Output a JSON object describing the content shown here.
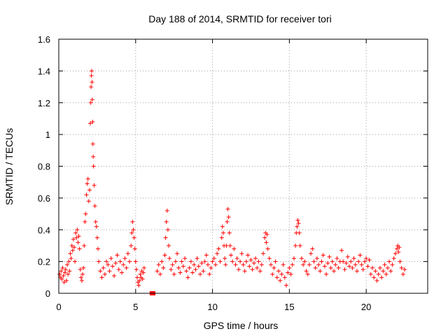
{
  "chart_data": {
    "type": "scatter",
    "title": "Day 188 of 2014, SRMTID for receiver tori",
    "xlabel": "GPS time / hours",
    "ylabel": "SRMTID / TECUs",
    "xlim": [
      0,
      24
    ],
    "ylim": [
      0,
      1.6
    ],
    "x_ticks": [
      0,
      5,
      10,
      15,
      20
    ],
    "x_tick_labels": [
      "0",
      "5",
      "10",
      "15",
      "20"
    ],
    "y_ticks": [
      0,
      0.2,
      0.4,
      0.6,
      0.8,
      1.0,
      1.2,
      1.4,
      1.6
    ],
    "y_tick_labels": [
      "0",
      "0.2",
      "0.4",
      "0.6",
      "0.8",
      "1",
      "1.2",
      "1.4",
      "1.6"
    ],
    "grid": true,
    "marker": "plus",
    "color": "#ff0000",
    "data_gap": [
      5.6,
      6.3
    ],
    "outlier_markers": [
      {
        "x": 6.05,
        "y": 0.0
      },
      {
        "x": 6.1,
        "y": 0.0
      },
      {
        "x": 6.15,
        "y": 0.0
      }
    ],
    "series": [
      {
        "name": "SRMTID",
        "points": [
          [
            0.05,
            0.12
          ],
          [
            0.1,
            0.1
          ],
          [
            0.15,
            0.14
          ],
          [
            0.2,
            0.09
          ],
          [
            0.25,
            0.16
          ],
          [
            0.3,
            0.11
          ],
          [
            0.35,
            0.07
          ],
          [
            0.4,
            0.13
          ],
          [
            0.45,
            0.15
          ],
          [
            0.5,
            0.08
          ],
          [
            0.55,
            0.18
          ],
          [
            0.6,
            0.12
          ],
          [
            0.65,
            0.2
          ],
          [
            0.7,
            0.14
          ],
          [
            0.75,
            0.25
          ],
          [
            0.8,
            0.22
          ],
          [
            0.85,
            0.3
          ],
          [
            0.9,
            0.27
          ],
          [
            0.95,
            0.34
          ],
          [
            1.0,
            0.29
          ],
          [
            1.05,
            0.2
          ],
          [
            1.1,
            0.38
          ],
          [
            1.15,
            0.35
          ],
          [
            1.2,
            0.4
          ],
          [
            1.25,
            0.32
          ],
          [
            1.3,
            0.36
          ],
          [
            1.35,
            0.28
          ],
          [
            1.4,
            0.15
          ],
          [
            1.45,
            0.1
          ],
          [
            1.5,
            0.08
          ],
          [
            1.55,
            0.12
          ],
          [
            1.6,
            0.16
          ],
          [
            1.65,
            0.3
          ],
          [
            1.7,
            0.45
          ],
          [
            1.75,
            0.5
          ],
          [
            1.8,
            0.62
          ],
          [
            1.85,
            0.69
          ],
          [
            1.9,
            0.72
          ],
          [
            1.95,
            0.58
          ],
          [
            2.0,
            0.65
          ],
          [
            2.05,
            1.07
          ],
          [
            2.08,
            1.2
          ],
          [
            2.1,
            1.3
          ],
          [
            2.12,
            1.37
          ],
          [
            2.14,
            1.4
          ],
          [
            2.16,
            1.33
          ],
          [
            2.18,
            1.22
          ],
          [
            2.2,
            1.08
          ],
          [
            2.22,
            0.94
          ],
          [
            2.24,
            0.86
          ],
          [
            2.26,
            0.8
          ],
          [
            2.3,
            0.68
          ],
          [
            2.35,
            0.55
          ],
          [
            2.4,
            0.45
          ],
          [
            2.45,
            0.42
          ],
          [
            2.5,
            0.35
          ],
          [
            2.55,
            0.28
          ],
          [
            2.6,
            0.2
          ],
          [
            2.7,
            0.14
          ],
          [
            2.8,
            0.1
          ],
          [
            2.9,
            0.16
          ],
          [
            3.0,
            0.12
          ],
          [
            3.1,
            0.2
          ],
          [
            3.2,
            0.18
          ],
          [
            3.3,
            0.14
          ],
          [
            3.4,
            0.22
          ],
          [
            3.5,
            0.17
          ],
          [
            3.6,
            0.11
          ],
          [
            3.7,
            0.19
          ],
          [
            3.8,
            0.24
          ],
          [
            3.9,
            0.15
          ],
          [
            4.0,
            0.2
          ],
          [
            4.1,
            0.13
          ],
          [
            4.2,
            0.18
          ],
          [
            4.3,
            0.22
          ],
          [
            4.4,
            0.16
          ],
          [
            4.5,
            0.25
          ],
          [
            4.6,
            0.2
          ],
          [
            4.7,
            0.3
          ],
          [
            4.75,
            0.38
          ],
          [
            4.8,
            0.45
          ],
          [
            4.85,
            0.4
          ],
          [
            4.9,
            0.35
          ],
          [
            4.95,
            0.28
          ],
          [
            5.0,
            0.2
          ],
          [
            5.05,
            0.15
          ],
          [
            5.1,
            0.1
          ],
          [
            5.15,
            0.07
          ],
          [
            5.2,
            0.05
          ],
          [
            5.25,
            0.08
          ],
          [
            5.3,
            0.12
          ],
          [
            5.35,
            0.1
          ],
          [
            5.4,
            0.14
          ],
          [
            5.45,
            0.09
          ],
          [
            5.5,
            0.13
          ],
          [
            5.55,
            0.16
          ],
          [
            6.4,
            0.14
          ],
          [
            6.5,
            0.18
          ],
          [
            6.6,
            0.12
          ],
          [
            6.7,
            0.2
          ],
          [
            6.8,
            0.16
          ],
          [
            6.9,
            0.24
          ],
          [
            6.95,
            0.35
          ],
          [
            7.0,
            0.45
          ],
          [
            7.05,
            0.52
          ],
          [
            7.1,
            0.4
          ],
          [
            7.15,
            0.3
          ],
          [
            7.2,
            0.22
          ],
          [
            7.3,
            0.15
          ],
          [
            7.4,
            0.18
          ],
          [
            7.5,
            0.12
          ],
          [
            7.6,
            0.2
          ],
          [
            7.7,
            0.25
          ],
          [
            7.8,
            0.16
          ],
          [
            7.9,
            0.13
          ],
          [
            8.0,
            0.2
          ],
          [
            8.1,
            0.17
          ],
          [
            8.2,
            0.22
          ],
          [
            8.3,
            0.14
          ],
          [
            8.4,
            0.1
          ],
          [
            8.5,
            0.16
          ],
          [
            8.6,
            0.2
          ],
          [
            8.7,
            0.13
          ],
          [
            8.8,
            0.18
          ],
          [
            8.9,
            0.15
          ],
          [
            9.0,
            0.22
          ],
          [
            9.1,
            0.17
          ],
          [
            9.2,
            0.12
          ],
          [
            9.3,
            0.19
          ],
          [
            9.4,
            0.14
          ],
          [
            9.5,
            0.2
          ],
          [
            9.6,
            0.24
          ],
          [
            9.7,
            0.18
          ],
          [
            9.8,
            0.12
          ],
          [
            9.9,
            0.16
          ],
          [
            10.0,
            0.2
          ],
          [
            10.1,
            0.22
          ],
          [
            10.2,
            0.18
          ],
          [
            10.3,
            0.25
          ],
          [
            10.4,
            0.28
          ],
          [
            10.5,
            0.2
          ],
          [
            10.6,
            0.35
          ],
          [
            10.65,
            0.42
          ],
          [
            10.7,
            0.38
          ],
          [
            10.75,
            0.3
          ],
          [
            10.8,
            0.22
          ],
          [
            10.85,
            0.18
          ],
          [
            10.9,
            0.3
          ],
          [
            10.95,
            0.45
          ],
          [
            11.0,
            0.53
          ],
          [
            11.05,
            0.48
          ],
          [
            11.1,
            0.38
          ],
          [
            11.15,
            0.3
          ],
          [
            11.2,
            0.24
          ],
          [
            11.3,
            0.2
          ],
          [
            11.4,
            0.28
          ],
          [
            11.5,
            0.18
          ],
          [
            11.6,
            0.22
          ],
          [
            11.7,
            0.15
          ],
          [
            11.8,
            0.2
          ],
          [
            11.9,
            0.25
          ],
          [
            12.0,
            0.18
          ],
          [
            12.1,
            0.14
          ],
          [
            12.2,
            0.2
          ],
          [
            12.3,
            0.24
          ],
          [
            12.4,
            0.17
          ],
          [
            12.5,
            0.21
          ],
          [
            12.6,
            0.15
          ],
          [
            12.7,
            0.19
          ],
          [
            12.8,
            0.22
          ],
          [
            12.9,
            0.16
          ],
          [
            13.0,
            0.2
          ],
          [
            13.1,
            0.14
          ],
          [
            13.2,
            0.18
          ],
          [
            13.3,
            0.25
          ],
          [
            13.4,
            0.35
          ],
          [
            13.45,
            0.38
          ],
          [
            13.5,
            0.32
          ],
          [
            13.55,
            0.37
          ],
          [
            13.6,
            0.28
          ],
          [
            13.7,
            0.22
          ],
          [
            13.8,
            0.18
          ],
          [
            13.9,
            0.12
          ],
          [
            14.0,
            0.16
          ],
          [
            14.1,
            0.2
          ],
          [
            14.2,
            0.1
          ],
          [
            14.3,
            0.14
          ],
          [
            14.4,
            0.08
          ],
          [
            14.5,
            0.12
          ],
          [
            14.6,
            0.18
          ],
          [
            14.7,
            0.1
          ],
          [
            14.8,
            0.05
          ],
          [
            14.9,
            0.13
          ],
          [
            15.0,
            0.16
          ],
          [
            15.1,
            0.12
          ],
          [
            15.2,
            0.18
          ],
          [
            15.3,
            0.22
          ],
          [
            15.4,
            0.3
          ],
          [
            15.45,
            0.38
          ],
          [
            15.5,
            0.42
          ],
          [
            15.55,
            0.46
          ],
          [
            15.6,
            0.44
          ],
          [
            15.65,
            0.38
          ],
          [
            15.7,
            0.3
          ],
          [
            15.8,
            0.22
          ],
          [
            15.9,
            0.18
          ],
          [
            16.0,
            0.2
          ],
          [
            16.1,
            0.14
          ],
          [
            16.2,
            0.12
          ],
          [
            16.3,
            0.18
          ],
          [
            16.4,
            0.25
          ],
          [
            16.5,
            0.28
          ],
          [
            16.6,
            0.2
          ],
          [
            16.7,
            0.16
          ],
          [
            16.8,
            0.22
          ],
          [
            16.9,
            0.18
          ],
          [
            17.0,
            0.14
          ],
          [
            17.1,
            0.2
          ],
          [
            17.2,
            0.24
          ],
          [
            17.3,
            0.17
          ],
          [
            17.4,
            0.12
          ],
          [
            17.5,
            0.19
          ],
          [
            17.6,
            0.23
          ],
          [
            17.7,
            0.16
          ],
          [
            17.8,
            0.2
          ],
          [
            17.9,
            0.14
          ],
          [
            18.0,
            0.18
          ],
          [
            18.1,
            0.22
          ],
          [
            18.2,
            0.16
          ],
          [
            18.3,
            0.2
          ],
          [
            18.4,
            0.27
          ],
          [
            18.5,
            0.2
          ],
          [
            18.6,
            0.15
          ],
          [
            18.7,
            0.19
          ],
          [
            18.8,
            0.23
          ],
          [
            18.9,
            0.17
          ],
          [
            19.0,
            0.2
          ],
          [
            19.1,
            0.16
          ],
          [
            19.2,
            0.22
          ],
          [
            19.3,
            0.18
          ],
          [
            19.4,
            0.14
          ],
          [
            19.5,
            0.2
          ],
          [
            19.6,
            0.24
          ],
          [
            19.7,
            0.18
          ],
          [
            19.8,
            0.15
          ],
          [
            19.9,
            0.2
          ],
          [
            20.0,
            0.22
          ],
          [
            20.1,
            0.17
          ],
          [
            20.2,
            0.21
          ],
          [
            20.3,
            0.12
          ],
          [
            20.4,
            0.16
          ],
          [
            20.5,
            0.1
          ],
          [
            20.6,
            0.14
          ],
          [
            20.7,
            0.08
          ],
          [
            20.8,
            0.12
          ],
          [
            20.9,
            0.16
          ],
          [
            21.0,
            0.1
          ],
          [
            21.1,
            0.14
          ],
          [
            21.2,
            0.18
          ],
          [
            21.3,
            0.12
          ],
          [
            21.4,
            0.16
          ],
          [
            21.5,
            0.2
          ],
          [
            21.6,
            0.14
          ],
          [
            21.7,
            0.18
          ],
          [
            21.8,
            0.22
          ],
          [
            21.9,
            0.25
          ],
          [
            22.0,
            0.28
          ],
          [
            22.05,
            0.3
          ],
          [
            22.1,
            0.26
          ],
          [
            22.15,
            0.29
          ],
          [
            22.2,
            0.2
          ],
          [
            22.3,
            0.16
          ],
          [
            22.4,
            0.12
          ],
          [
            22.5,
            0.15
          ]
        ]
      }
    ]
  }
}
